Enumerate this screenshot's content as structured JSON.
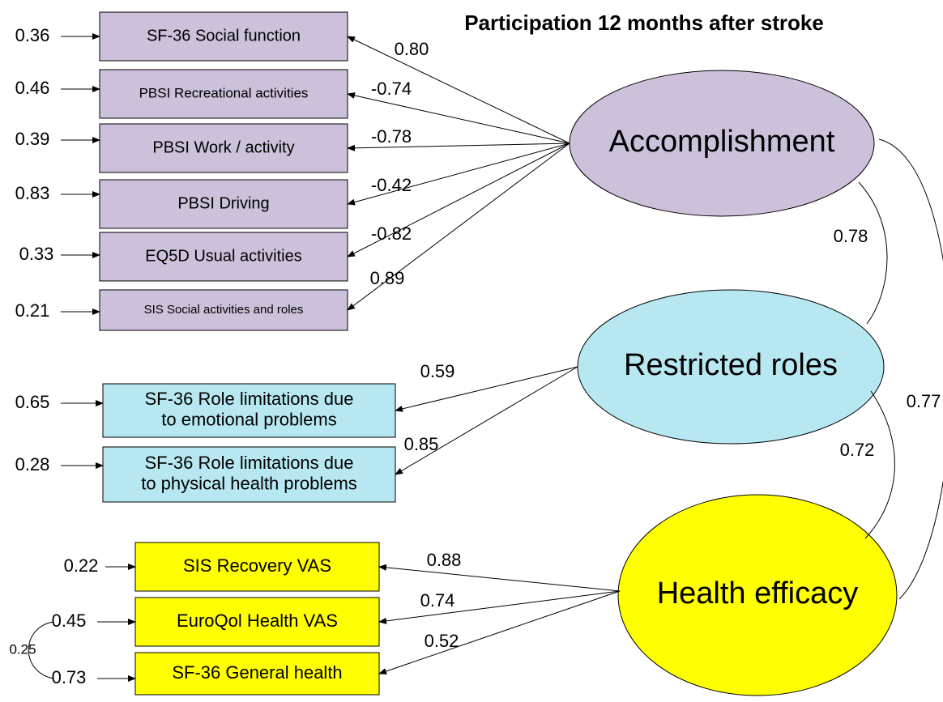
{
  "title": "Participation 12 months after stroke",
  "factors": [
    {
      "label": "Accomplishment",
      "indicators": [
        {
          "lines": [
            "SF-36 Social function"
          ],
          "error": "0.36",
          "loading": "0.80"
        },
        {
          "lines": [
            "PBSI Recreational activities"
          ],
          "error": "0.46",
          "loading": "-0.74"
        },
        {
          "lines": [
            "PBSI Work / activity"
          ],
          "error": "0.39",
          "loading": "-0.78"
        },
        {
          "lines": [
            "PBSI Driving"
          ],
          "error": "0.83",
          "loading": "-0.42"
        },
        {
          "lines": [
            "EQ5D Usual activities"
          ],
          "error": "0.33",
          "loading": "-0.82"
        },
        {
          "lines": [
            "SIS Social activities and roles"
          ],
          "error": "0.21",
          "loading": "0.89"
        }
      ]
    },
    {
      "label": "Restricted roles",
      "indicators": [
        {
          "lines": [
            "SF-36 Role limitations due",
            "to emotional problems"
          ],
          "error": "0.65",
          "loading": "0.59"
        },
        {
          "lines": [
            "SF-36 Role limitations due",
            "to physical health problems"
          ],
          "error": "0.28",
          "loading": "0.85"
        }
      ]
    },
    {
      "label": "Health efficacy",
      "indicators": [
        {
          "lines": [
            "SIS Recovery VAS"
          ],
          "error": "0.22",
          "loading": "0.88"
        },
        {
          "lines": [
            "EuroQol Health VAS"
          ],
          "error": "0.45",
          "loading": "0.74"
        },
        {
          "lines": [
            "SF-36 General health"
          ],
          "error": "0.73",
          "loading": "0.52"
        }
      ]
    }
  ],
  "factor_correlations": [
    "0.78",
    "0.72",
    "0.77"
  ],
  "error_correlations": [
    "0.25"
  ]
}
